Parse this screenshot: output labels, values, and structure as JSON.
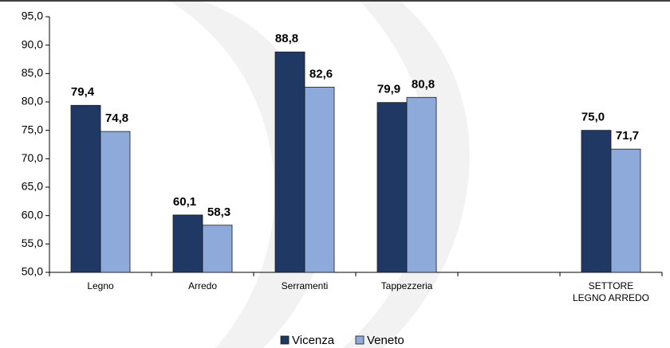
{
  "chart_data": {
    "type": "bar",
    "categories": [
      "Legno",
      "Arredo",
      "Serramenti",
      "Tappezzeria",
      null,
      "SETTORE LEGNO ARREDO"
    ],
    "series": [
      {
        "name": "Vicenza",
        "color": "#1f3864",
        "values": [
          79.4,
          60.1,
          88.8,
          79.9,
          null,
          75.0
        ],
        "value_labels": [
          "79,4",
          "60,1",
          "88,8",
          "79,9",
          null,
          "75,0"
        ]
      },
      {
        "name": "Veneto",
        "color": "#8eaadb",
        "values": [
          74.8,
          58.3,
          82.6,
          80.8,
          null,
          71.7
        ],
        "value_labels": [
          "74,8",
          "58,3",
          "82,6",
          "80,8",
          null,
          "71,7"
        ]
      }
    ],
    "ylim": [
      50,
      95
    ],
    "yticks": [
      {
        "value": 50,
        "label": "50,0"
      },
      {
        "value": 55,
        "label": "55,0"
      },
      {
        "value": 60,
        "label": "60,0"
      },
      {
        "value": 65,
        "label": "65,0"
      },
      {
        "value": 70,
        "label": "70,0"
      },
      {
        "value": 75,
        "label": "75,0"
      },
      {
        "value": 80,
        "label": "80,0"
      },
      {
        "value": 85,
        "label": "85,0"
      },
      {
        "value": 90,
        "label": "90,0"
      },
      {
        "value": 95,
        "label": "95,0"
      }
    ],
    "legend": "bottom"
  }
}
